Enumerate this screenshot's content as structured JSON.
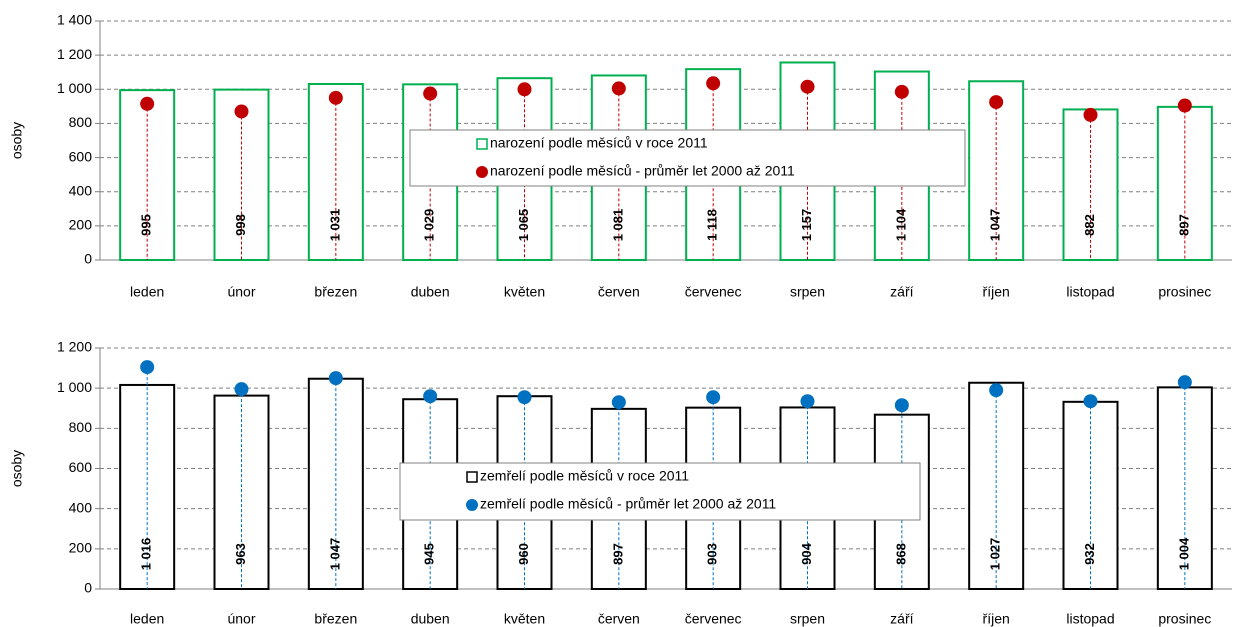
{
  "chart_data": [
    {
      "type": "bar",
      "ylabel": "osoby",
      "categories": [
        "leden",
        "únor",
        "březen",
        "duben",
        "květen",
        "červen",
        "červenec",
        "srpen",
        "září",
        "říjen",
        "listopad",
        "prosinec"
      ],
      "ylim": [
        0,
        1400
      ],
      "yticks": [
        0,
        200,
        400,
        600,
        800,
        {
          "value": 1000,
          "label": "1 000"
        },
        {
          "value": 1200,
          "label": "1 200"
        },
        {
          "value": 1400,
          "label": "1 400"
        }
      ],
      "grid": true,
      "legend": "center",
      "series": [
        {
          "name": "narození podle měsíců v roce 2011",
          "type": "bar",
          "color": "#00b050",
          "values": [
            995,
            998,
            1031,
            1029,
            1065,
            1081,
            1118,
            1157,
            1104,
            1047,
            882,
            897
          ],
          "value_labels": [
            "995",
            "998",
            "1 031",
            "1 029",
            "1 065",
            "1 081",
            "1 118",
            "1 157",
            "1 104",
            "1 047",
            "882",
            "897"
          ]
        },
        {
          "name": "narození podle měsíců - průměr let 2000 až 2011",
          "type": "scatter",
          "color": "#c00000",
          "values": [
            915,
            870,
            950,
            975,
            1000,
            1005,
            1035,
            1015,
            985,
            925,
            850,
            905
          ]
        }
      ]
    },
    {
      "type": "bar",
      "ylabel": "osoby",
      "categories": [
        "leden",
        "únor",
        "březen",
        "duben",
        "květen",
        "červen",
        "červenec",
        "srpen",
        "září",
        "říjen",
        "listopad",
        "prosinec"
      ],
      "ylim": [
        0,
        1200
      ],
      "yticks": [
        0,
        200,
        400,
        600,
        800,
        {
          "value": 1000,
          "label": "1 000"
        },
        {
          "value": 1200,
          "label": "1 200"
        }
      ],
      "grid": true,
      "legend": "center",
      "series": [
        {
          "name": "zemřelí podle měsíců v roce 2011",
          "type": "bar",
          "color": "#000000",
          "values": [
            1016,
            963,
            1047,
            945,
            960,
            897,
            903,
            904,
            868,
            1027,
            932,
            1004
          ],
          "value_labels": [
            "1 016",
            "963",
            "1 047",
            "945",
            "960",
            "897",
            "903",
            "904",
            "868",
            "1 027",
            "932",
            "1 004"
          ]
        },
        {
          "name": "zemřelí podle měsíců - průměr let 2000 až 2011",
          "type": "scatter",
          "color": "#0070c0",
          "values": [
            1105,
            995,
            1050,
            960,
            955,
            930,
            955,
            935,
            915,
            990,
            935,
            1030
          ]
        }
      ]
    }
  ]
}
